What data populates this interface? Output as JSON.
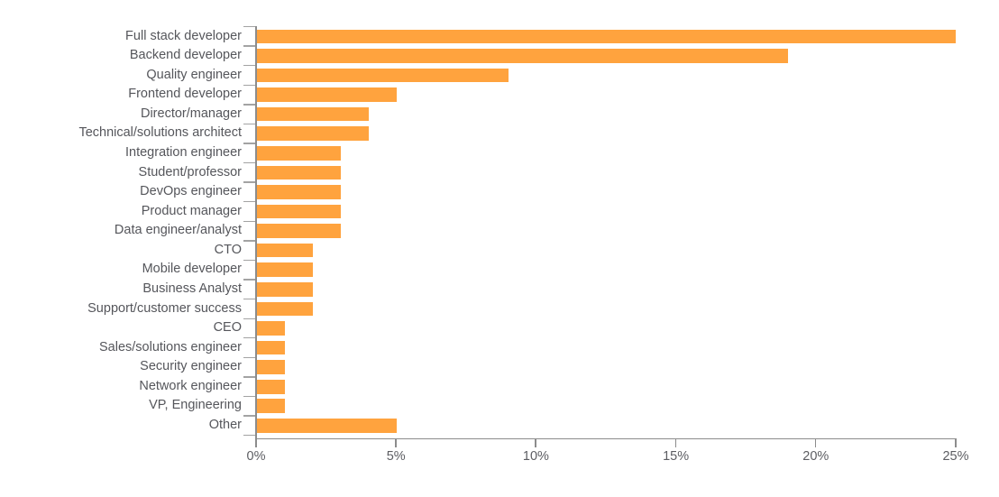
{
  "chart_data": {
    "type": "bar",
    "orientation": "horizontal",
    "title": "",
    "xlabel": "",
    "ylabel": "",
    "unit": "%",
    "categories": [
      "Full stack developer",
      "Backend developer",
      "Quality engineer",
      "Frontend developer",
      "Director/manager",
      "Technical/solutions architect",
      "Integration engineer",
      "Student/professor",
      "DevOps engineer",
      "Product manager",
      "Data engineer/analyst",
      "CTO",
      "Mobile developer",
      "Business Analyst",
      "Support/customer success",
      "CEO",
      "Sales/solutions engineer",
      "Security engineer",
      "Network engineer",
      "VP, Engineering",
      "Other"
    ],
    "values": [
      25,
      19,
      9,
      5,
      4,
      4,
      3,
      3,
      3,
      3,
      3,
      2,
      2,
      2,
      2,
      1,
      1,
      1,
      1,
      1,
      5
    ],
    "xlim": [
      0,
      25
    ],
    "x_ticks": [
      "0%",
      "5%",
      "10%",
      "15%",
      "20%",
      "25%"
    ],
    "x_tick_values": [
      0,
      5,
      10,
      15,
      20,
      25
    ],
    "grid": false,
    "legend_position": "none",
    "colors": {
      "bar": "#FFA33E",
      "axis_line": "#8c8c8c",
      "category_tick": "#a3a3a3",
      "label_text": "#55565B",
      "tick_label_text": "#5c5d62"
    }
  }
}
